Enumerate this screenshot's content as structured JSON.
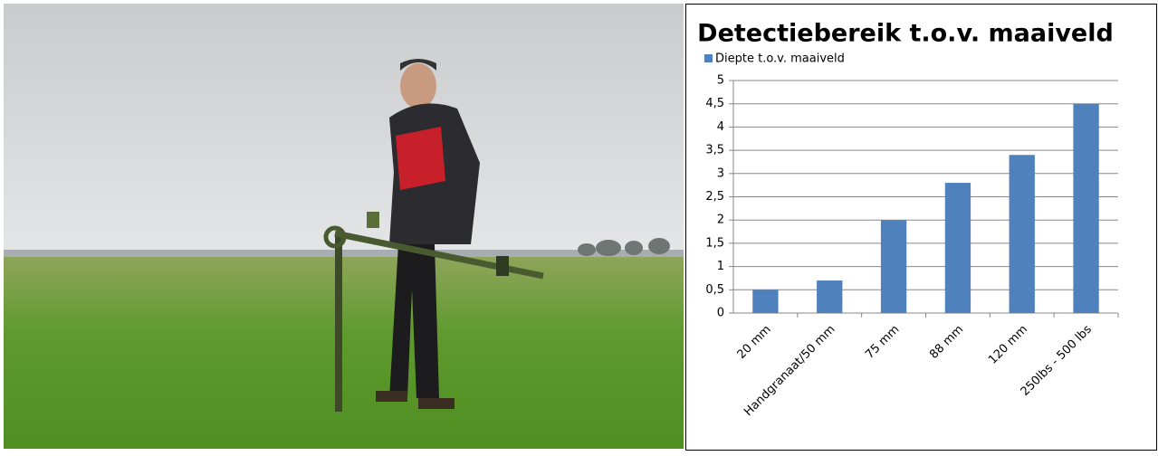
{
  "chart_data": {
    "type": "bar",
    "title": "Detectiebereik t.o.v. maaiveld",
    "categories": [
      "20 mm",
      "Handgranaat/50 mm",
      "75 mm",
      "88 mm",
      "120 mm",
      "250lbs - 500 lbs"
    ],
    "series": [
      {
        "name": "Diepte t.o.v. maaiveld",
        "color": "#4f81bd",
        "values": [
          0.5,
          0.7,
          2,
          2.8,
          3.4,
          4.5
        ]
      }
    ],
    "ylim": [
      0,
      5
    ],
    "yticks": [
      0,
      {
        "value": 0.5,
        "label": "0,5"
      },
      1,
      {
        "value": 1.5,
        "label": "1,5"
      },
      2,
      {
        "value": 2.5,
        "label": "2,5"
      },
      3,
      {
        "value": 3.5,
        "label": "3,5"
      },
      4,
      {
        "value": 4.5,
        "label": "4,5"
      },
      5
    ],
    "grid": true,
    "legend": "top-left"
  }
}
